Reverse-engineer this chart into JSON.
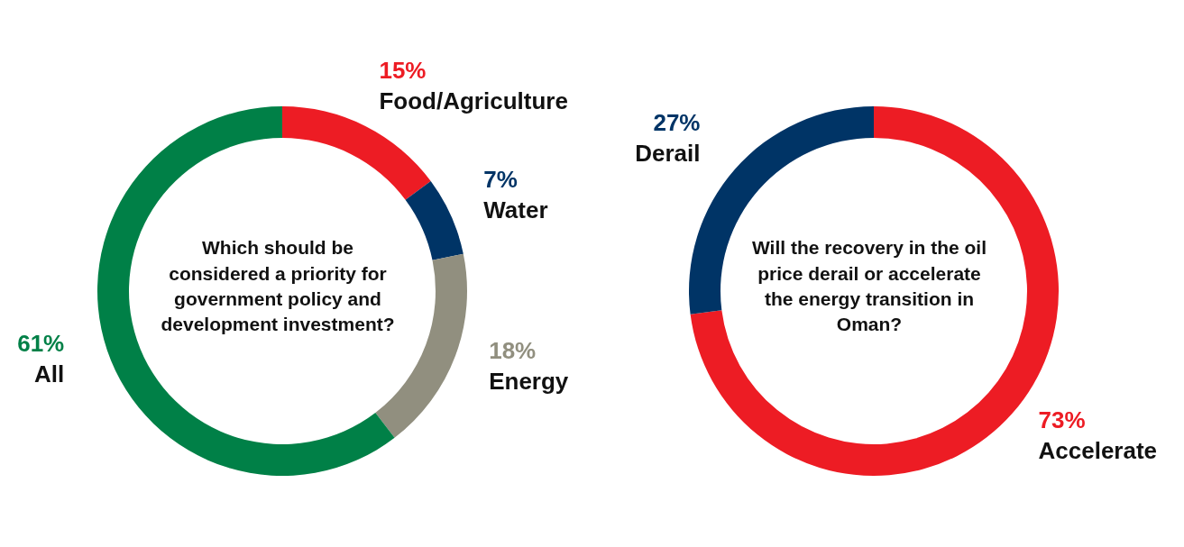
{
  "chart_data": [
    {
      "type": "donut",
      "title": "Which should be considered a priority for government policy and development investment?",
      "categories": [
        "Food/Agriculture",
        "Water",
        "Energy",
        "All"
      ],
      "values": [
        15,
        7,
        18,
        61
      ],
      "value_labels": [
        "15%",
        "7%",
        "18%",
        "61%"
      ],
      "colors": [
        "#ed1c24",
        "#003466",
        "#918f7f",
        "#008047"
      ],
      "legend": false
    },
    {
      "type": "donut",
      "title": "Will the recovery in the oil price derail or accelerate the energy transition in Oman?",
      "categories": [
        "Accelerate",
        "Derail"
      ],
      "values": [
        73,
        27
      ],
      "value_labels": [
        "73%",
        "27%"
      ],
      "colors": [
        "#ed1c24",
        "#003466"
      ],
      "legend": false
    }
  ]
}
